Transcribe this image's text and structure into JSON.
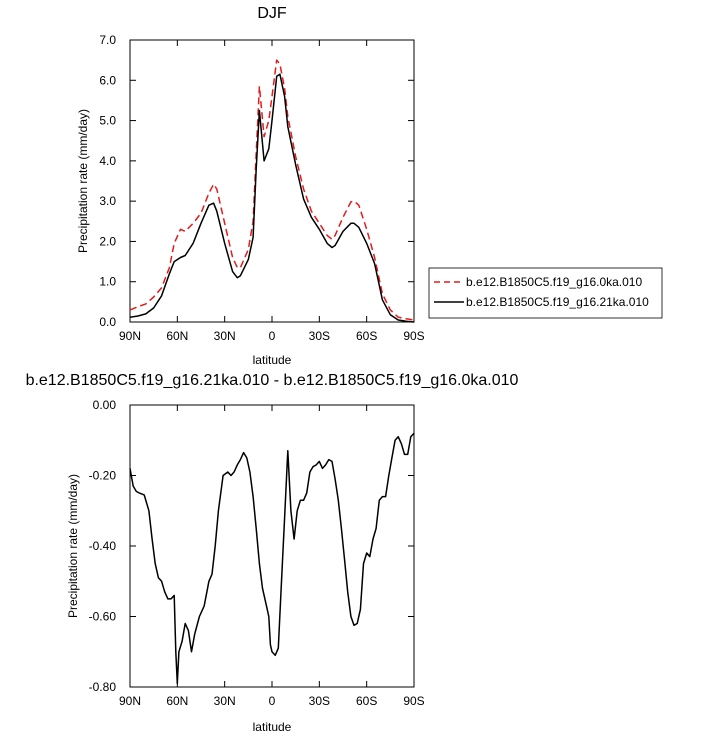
{
  "chart_data": [
    {
      "type": "line",
      "title": "DJF",
      "xlabel": "latitude",
      "ylabel": "Precipitation rate (mm/day)",
      "xlim": [
        90,
        -90
      ],
      "ylim": [
        0,
        7
      ],
      "xticks": [
        90,
        60,
        30,
        0,
        -30,
        -60,
        -90
      ],
      "xtick_labels": [
        "90N",
        "60N",
        "30N",
        "0",
        "30S",
        "60S",
        "90S"
      ],
      "yticks": [
        0,
        1,
        2,
        3,
        4,
        5,
        6,
        7
      ],
      "ytick_labels": [
        "0.0",
        "1.0",
        "2.0",
        "3.0",
        "4.0",
        "5.0",
        "6.0",
        "7.0"
      ],
      "legend": "right",
      "series": [
        {
          "name": "b.e12.B1850C5.f19_g16.0ka.010",
          "color": "#e41a1c",
          "dash": "dashed",
          "x": [
            90,
            85,
            80,
            75,
            70,
            65,
            62,
            58,
            55,
            50,
            45,
            40,
            37,
            35,
            30,
            25,
            22,
            20,
            15,
            12,
            10,
            8,
            5,
            2,
            0,
            -3,
            -5,
            -8,
            -10,
            -15,
            -20,
            -25,
            -30,
            -35,
            -38,
            -40,
            -45,
            -50,
            -52,
            -55,
            -60,
            -65,
            -70,
            -75,
            -80,
            -85,
            -90
          ],
          "y": [
            0.3,
            0.38,
            0.45,
            0.62,
            0.85,
            1.35,
            1.95,
            2.3,
            2.25,
            2.45,
            2.7,
            3.2,
            3.42,
            3.3,
            2.45,
            1.6,
            1.35,
            1.35,
            1.8,
            2.5,
            4.2,
            5.85,
            4.6,
            5.0,
            5.6,
            6.5,
            6.4,
            5.8,
            5.1,
            4.1,
            3.3,
            2.75,
            2.45,
            2.15,
            2.05,
            2.15,
            2.6,
            2.98,
            3.0,
            2.9,
            2.3,
            1.6,
            0.7,
            0.3,
            0.12,
            0.08,
            0.05
          ]
        },
        {
          "name": "b.e12.B1850C5.f19_g16.21ka.010",
          "color": "#000000",
          "dash": "solid",
          "x": [
            90,
            85,
            80,
            75,
            70,
            65,
            62,
            58,
            55,
            50,
            45,
            40,
            37,
            35,
            30,
            25,
            22,
            20,
            15,
            12,
            10,
            8,
            5,
            2,
            0,
            -3,
            -5,
            -8,
            -10,
            -15,
            -20,
            -25,
            -30,
            -35,
            -38,
            -40,
            -45,
            -50,
            -52,
            -55,
            -60,
            -65,
            -70,
            -75,
            -80,
            -85,
            -90
          ],
          "y": [
            0.12,
            0.15,
            0.2,
            0.35,
            0.65,
            1.2,
            1.5,
            1.6,
            1.65,
            1.95,
            2.45,
            2.9,
            2.95,
            2.75,
            1.95,
            1.25,
            1.1,
            1.15,
            1.55,
            2.1,
            3.8,
            5.25,
            4.0,
            4.3,
            5.0,
            6.1,
            6.15,
            5.6,
            4.85,
            3.9,
            3.05,
            2.6,
            2.3,
            1.95,
            1.85,
            1.9,
            2.25,
            2.45,
            2.45,
            2.35,
            1.95,
            1.45,
            0.55,
            0.18,
            0.05,
            0.02,
            0.0
          ]
        }
      ]
    },
    {
      "type": "line",
      "title": "b.e12.B1850C5.f19_g16.21ka.010 - b.e12.B1850C5.f19_g16.0ka.010",
      "xlabel": "latitude",
      "ylabel": "Precipitation rate (mm/day)",
      "xlim": [
        90,
        -90
      ],
      "ylim": [
        -0.8,
        0
      ],
      "xticks": [
        90,
        60,
        30,
        0,
        -30,
        -60,
        -90
      ],
      "xtick_labels": [
        "90N",
        "60N",
        "30N",
        "0",
        "30S",
        "60S",
        "90S"
      ],
      "yticks": [
        -0.8,
        -0.6,
        -0.4,
        -0.2,
        0
      ],
      "ytick_labels": [
        "-0.80",
        "-0.60",
        "-0.40",
        "-0.20",
        "0.00"
      ],
      "series": [
        {
          "name": "",
          "color": "#000000",
          "dash": "solid",
          "x": [
            90,
            88,
            86,
            84,
            81,
            78,
            76,
            74,
            72,
            70,
            68,
            66,
            64,
            62,
            61,
            60,
            59,
            57,
            55,
            53,
            51,
            49,
            46,
            43,
            40,
            38,
            36,
            34,
            31,
            28,
            26,
            24,
            22,
            20,
            18,
            16,
            14,
            12,
            10,
            8,
            6,
            4,
            2,
            1,
            0,
            -2,
            -4,
            -6,
            -8,
            -10,
            -12,
            -14,
            -16,
            -18,
            -20,
            -22,
            -24,
            -26,
            -28,
            -30,
            -32,
            -34,
            -36,
            -38,
            -40,
            -42,
            -44,
            -46,
            -48,
            -50,
            -52,
            -54,
            -56,
            -58,
            -60,
            -62,
            -64,
            -66,
            -68,
            -70,
            -72,
            -74,
            -76,
            -78,
            -80,
            -82,
            -84,
            -86,
            -88,
            -90
          ],
          "y": [
            -0.18,
            -0.23,
            -0.245,
            -0.25,
            -0.255,
            -0.3,
            -0.38,
            -0.45,
            -0.49,
            -0.5,
            -0.53,
            -0.55,
            -0.55,
            -0.54,
            -0.7,
            -0.79,
            -0.7,
            -0.67,
            -0.62,
            -0.64,
            -0.7,
            -0.65,
            -0.6,
            -0.57,
            -0.5,
            -0.48,
            -0.4,
            -0.3,
            -0.2,
            -0.19,
            -0.2,
            -0.19,
            -0.17,
            -0.155,
            -0.135,
            -0.15,
            -0.19,
            -0.26,
            -0.35,
            -0.45,
            -0.52,
            -0.56,
            -0.6,
            -0.68,
            -0.7,
            -0.71,
            -0.69,
            -0.5,
            -0.32,
            -0.13,
            -0.3,
            -0.38,
            -0.3,
            -0.27,
            -0.27,
            -0.25,
            -0.19,
            -0.175,
            -0.17,
            -0.16,
            -0.18,
            -0.17,
            -0.155,
            -0.16,
            -0.21,
            -0.27,
            -0.35,
            -0.44,
            -0.53,
            -0.6,
            -0.625,
            -0.62,
            -0.58,
            -0.45,
            -0.42,
            -0.43,
            -0.38,
            -0.35,
            -0.27,
            -0.26,
            -0.26,
            -0.2,
            -0.15,
            -0.1,
            -0.09,
            -0.11,
            -0.14,
            -0.14,
            -0.09,
            -0.08
          ]
        }
      ]
    }
  ]
}
